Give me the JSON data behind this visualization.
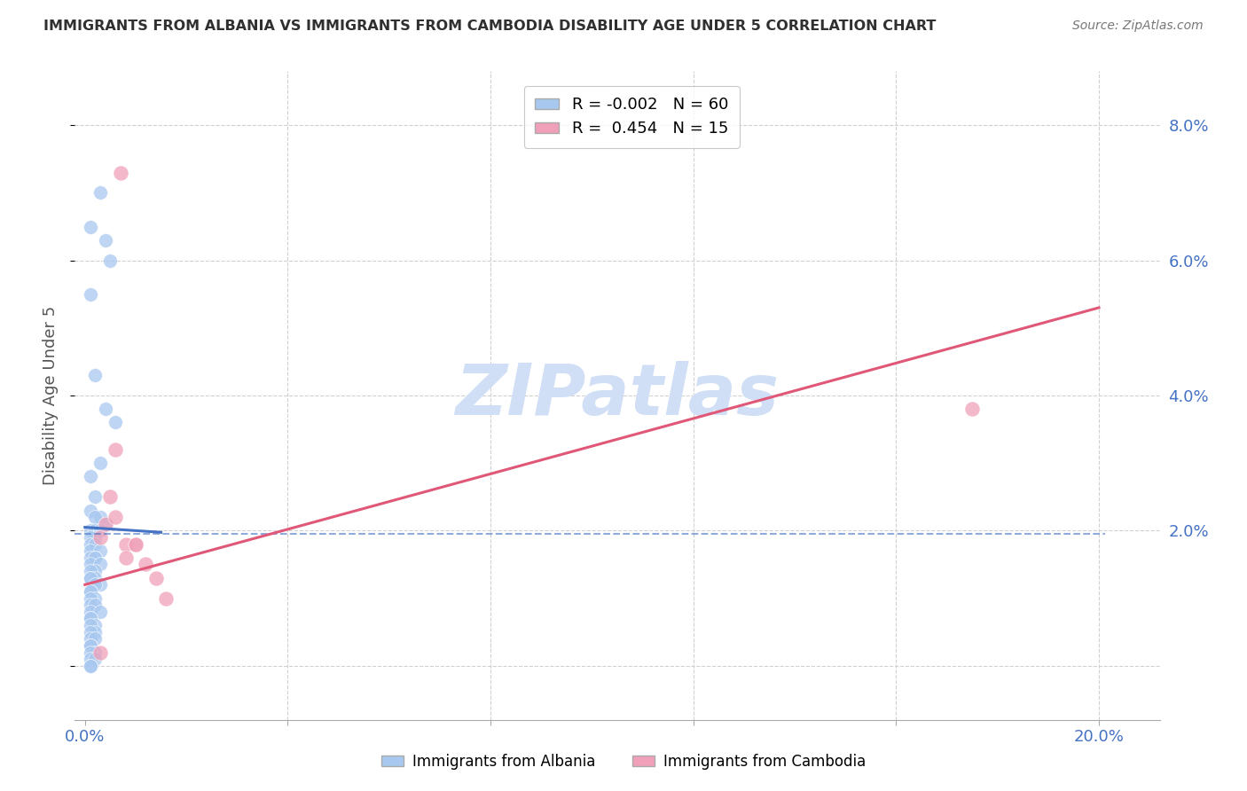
{
  "title": "IMMIGRANTS FROM ALBANIA VS IMMIGRANTS FROM CAMBODIA DISABILITY AGE UNDER 5 CORRELATION CHART",
  "source": "Source: ZipAtlas.com",
  "ylabel": "Disability Age Under 5",
  "right_yticks": [
    0.0,
    0.02,
    0.04,
    0.06,
    0.08
  ],
  "right_yticklabels": [
    "",
    "2.0%",
    "4.0%",
    "6.0%",
    "8.0%"
  ],
  "xtick_positions": [
    0.0,
    0.04,
    0.08,
    0.12,
    0.16,
    0.2
  ],
  "xticklabels": [
    "0.0%",
    "",
    "",
    "",
    "",
    "20.0%"
  ],
  "xlim": [
    -0.002,
    0.212
  ],
  "ylim": [
    -0.008,
    0.088
  ],
  "albania_R": -0.002,
  "albania_N": 60,
  "cambodia_R": 0.454,
  "cambodia_N": 15,
  "albania_color": "#a8c8f0",
  "cambodia_color": "#f0a0b8",
  "albania_line_color": "#4472c4",
  "cambodia_line_color": "#e05878",
  "watermark": "ZIPatlas",
  "watermark_color": "#d0dff5",
  "albania_scatter_x": [
    0.001,
    0.003,
    0.004,
    0.005,
    0.001,
    0.002,
    0.004,
    0.006,
    0.003,
    0.001,
    0.002,
    0.001,
    0.003,
    0.002,
    0.004,
    0.001,
    0.002,
    0.003,
    0.002,
    0.001,
    0.001,
    0.002,
    0.001,
    0.003,
    0.002,
    0.001,
    0.002,
    0.001,
    0.003,
    0.002,
    0.001,
    0.001,
    0.002,
    0.001,
    0.003,
    0.002,
    0.001,
    0.001,
    0.002,
    0.001,
    0.001,
    0.002,
    0.001,
    0.003,
    0.001,
    0.001,
    0.002,
    0.001,
    0.002,
    0.001,
    0.001,
    0.002,
    0.001,
    0.001,
    0.002,
    0.001,
    0.001,
    0.002,
    0.001,
    0.001
  ],
  "albania_scatter_y": [
    0.065,
    0.07,
    0.063,
    0.06,
    0.055,
    0.043,
    0.038,
    0.036,
    0.03,
    0.028,
    0.025,
    0.023,
    0.022,
    0.022,
    0.021,
    0.02,
    0.02,
    0.02,
    0.019,
    0.019,
    0.018,
    0.018,
    0.017,
    0.017,
    0.016,
    0.016,
    0.016,
    0.015,
    0.015,
    0.014,
    0.014,
    0.013,
    0.013,
    0.013,
    0.012,
    0.012,
    0.011,
    0.011,
    0.01,
    0.01,
    0.009,
    0.009,
    0.008,
    0.008,
    0.007,
    0.007,
    0.006,
    0.006,
    0.005,
    0.005,
    0.004,
    0.004,
    0.003,
    0.003,
    0.002,
    0.002,
    0.001,
    0.001,
    0.0,
    0.0
  ],
  "cambodia_scatter_x": [
    0.003,
    0.004,
    0.005,
    0.006,
    0.008,
    0.01,
    0.012,
    0.014,
    0.016,
    0.175,
    0.006,
    0.007,
    0.003,
    0.01,
    0.008
  ],
  "cambodia_scatter_y": [
    0.019,
    0.021,
    0.025,
    0.022,
    0.018,
    0.018,
    0.015,
    0.013,
    0.01,
    0.038,
    0.032,
    0.073,
    0.002,
    0.018,
    0.016
  ],
  "albania_line_y_intercept": 0.0205,
  "albania_line_slope": -0.05,
  "cambodia_line_x_start": 0.0,
  "cambodia_line_x_end": 0.2,
  "cambodia_line_y_start": 0.012,
  "cambodia_line_y_end": 0.053,
  "dashed_line_y": 0.0195,
  "grid_color": "#d0d0d0",
  "bg_color": "#ffffff",
  "title_color": "#303030"
}
